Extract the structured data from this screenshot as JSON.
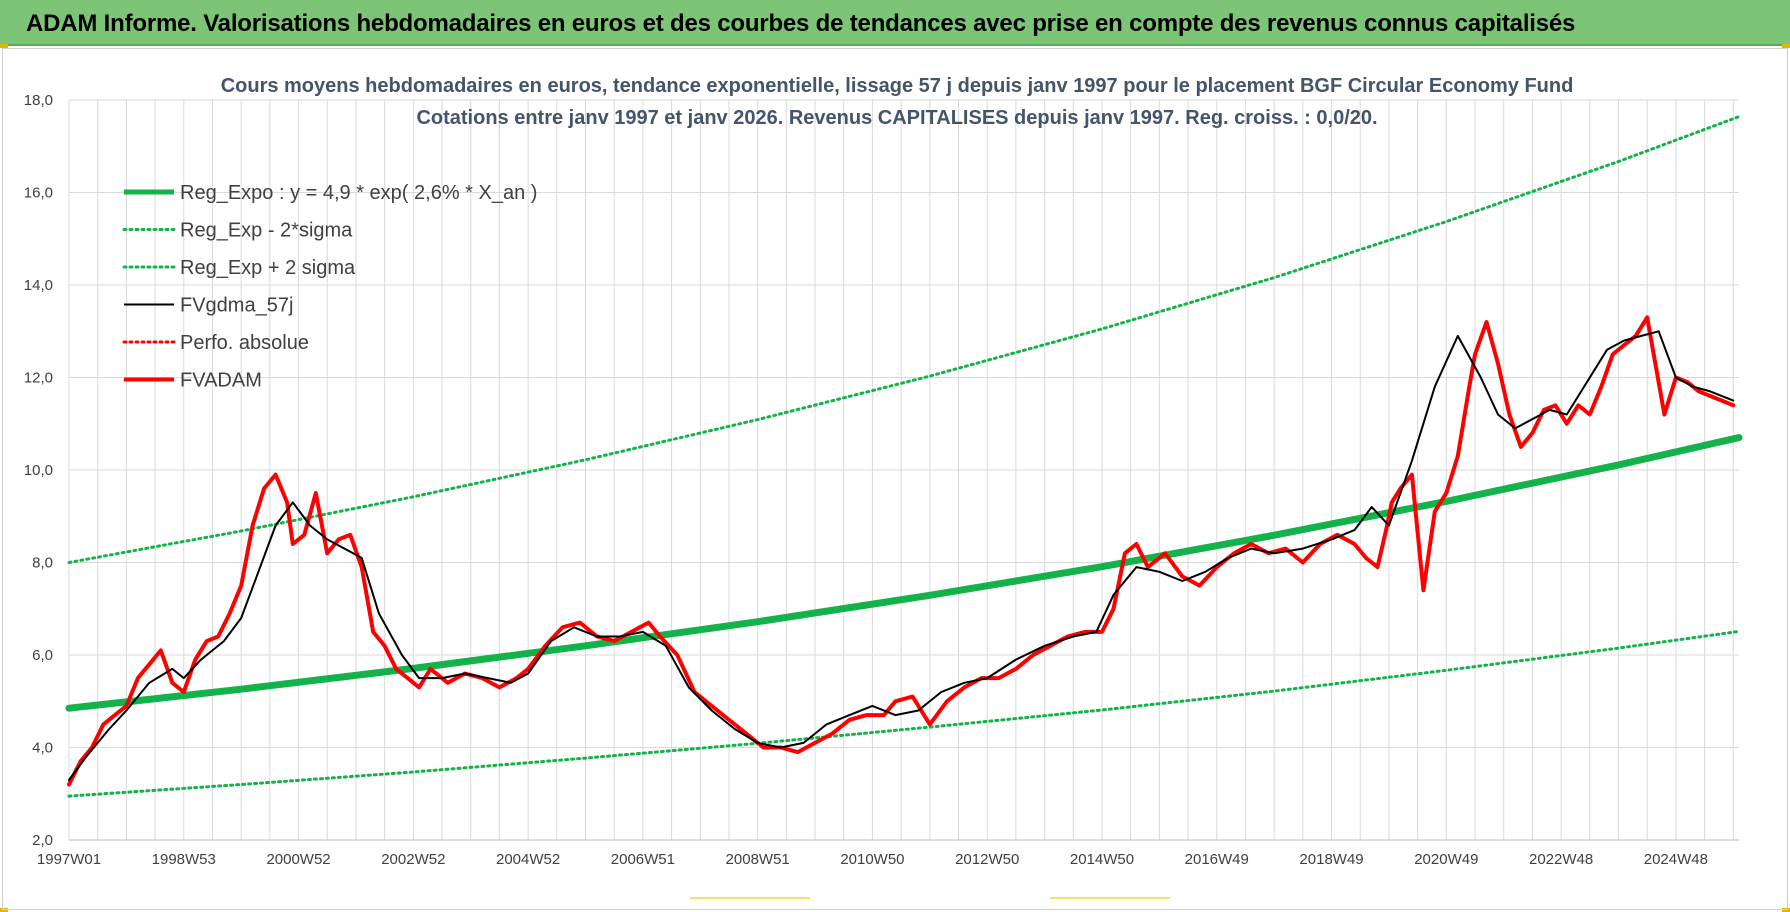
{
  "banner": {
    "title": "ADAM Informe. Valorisations hebdomadaires en euros et des courbes de tendances avec prise en compte des revenus connus capitalisés"
  },
  "colors": {
    "banner_bg": "#7cc576",
    "reg_green": "#14b24a",
    "fvadam_red": "#ff0000",
    "fvgdma_black": "#000000",
    "grid": "#d9d9d9",
    "title_text": "#44546a"
  },
  "chart_data": {
    "type": "line",
    "title": "Cours moyens hebdomadaires en euros, tendance exponentielle, lissage 57 j depuis janv 1997  pour le placement BGF Circular Economy Fund",
    "subtitle": "Cotations entre janv 1997 et janv 2026. Revenus CAPITALISES depuis janv 1997. Reg. croiss. : 0,0/20.",
    "xlabel": "",
    "ylabel": "",
    "x_range": [
      1997.0,
      2026.1
    ],
    "ylim": [
      2.0,
      18.0
    ],
    "y_ticks": [
      "2,0",
      "4,0",
      "6,0",
      "8,0",
      "10,0",
      "12,0",
      "14,0",
      "16,0",
      "18,0"
    ],
    "y_tick_values": [
      2,
      4,
      6,
      8,
      10,
      12,
      14,
      16,
      18
    ],
    "x_ticks": [
      "1997W01",
      "1998W53",
      "2000W52",
      "2002W52",
      "2004W52",
      "2006W51",
      "2008W51",
      "2010W50",
      "2012W50",
      "2014W50",
      "2016W49",
      "2018W49",
      "2020W49",
      "2022W48",
      "2024W48"
    ],
    "x_tick_values": [
      1997.0,
      1999.0,
      2001.0,
      2003.0,
      2005.0,
      2007.0,
      2009.0,
      2011.0,
      2013.0,
      2015.0,
      2017.0,
      2019.0,
      2021.0,
      2023.0,
      2025.0
    ],
    "grid": true,
    "legend_position": "top-left",
    "series": [
      {
        "name": "Reg_Expo : y = 4,9 * exp( 2,6% *  X_an )",
        "style": "solid-thick",
        "color": "#14b24a",
        "x": [
          1997.0,
          2000.0,
          2003.0,
          2006.0,
          2009.0,
          2012.0,
          2015.0,
          2018.0,
          2021.0,
          2024.0,
          2026.1
        ],
        "values": [
          4.85,
          5.26,
          5.71,
          6.2,
          6.72,
          7.29,
          7.91,
          8.59,
          9.32,
          10.11,
          10.7
        ]
      },
      {
        "name": "Reg_Exp - 2*sigma",
        "style": "dotted",
        "color": "#14b24a",
        "x": [
          1997.0,
          2000.0,
          2003.0,
          2006.0,
          2009.0,
          2012.0,
          2015.0,
          2018.0,
          2021.0,
          2024.0,
          2026.1
        ],
        "values": [
          2.95,
          3.2,
          3.47,
          3.77,
          4.09,
          4.44,
          4.81,
          5.22,
          5.67,
          6.15,
          6.51
        ]
      },
      {
        "name": "Reg_Exp + 2 sigma",
        "style": "dotted",
        "color": "#14b24a",
        "x": [
          1997.0,
          2000.0,
          2003.0,
          2006.0,
          2009.0,
          2012.0,
          2015.0,
          2018.0,
          2021.0,
          2024.0,
          2026.1
        ],
        "values": [
          8.0,
          8.68,
          9.42,
          10.22,
          11.09,
          12.03,
          13.05,
          14.16,
          15.37,
          16.67,
          17.64
        ]
      },
      {
        "name": "FVgdma_57j",
        "style": "solid",
        "color": "#000000",
        "x": [
          1997.0,
          1997.3,
          1997.7,
          1998.0,
          1998.4,
          1998.8,
          1999.0,
          1999.3,
          1999.7,
          2000.0,
          2000.3,
          2000.6,
          2000.9,
          2001.2,
          2001.5,
          2001.8,
          2002.1,
          2002.4,
          2002.8,
          2003.1,
          2003.5,
          2003.9,
          2004.3,
          2004.7,
          2005.0,
          2005.4,
          2005.8,
          2006.2,
          2006.6,
          2007.0,
          2007.4,
          2007.8,
          2008.2,
          2008.6,
          2009.0,
          2009.4,
          2009.8,
          2010.2,
          2010.6,
          2011.0,
          2011.4,
          2011.8,
          2012.2,
          2012.6,
          2013.0,
          2013.5,
          2014.0,
          2014.5,
          2014.9,
          2015.2,
          2015.6,
          2016.0,
          2016.4,
          2016.8,
          2017.2,
          2017.6,
          2018.0,
          2018.5,
          2019.0,
          2019.4,
          2019.7,
          2020.0,
          2020.4,
          2020.8,
          2021.2,
          2021.6,
          2021.9,
          2022.2,
          2022.5,
          2022.8,
          2023.1,
          2023.4,
          2023.8,
          2024.1,
          2024.4,
          2024.7,
          2025.0,
          2025.3,
          2025.6,
          2026.0
        ],
        "values": [
          3.3,
          3.8,
          4.4,
          4.8,
          5.4,
          5.7,
          5.5,
          5.9,
          6.3,
          6.8,
          7.8,
          8.8,
          9.3,
          8.8,
          8.5,
          8.3,
          8.1,
          6.9,
          6.0,
          5.5,
          5.5,
          5.6,
          5.5,
          5.4,
          5.6,
          6.3,
          6.6,
          6.4,
          6.4,
          6.5,
          6.2,
          5.3,
          4.8,
          4.4,
          4.1,
          4.0,
          4.1,
          4.5,
          4.7,
          4.9,
          4.7,
          4.8,
          5.2,
          5.4,
          5.5,
          5.9,
          6.2,
          6.4,
          6.5,
          7.3,
          7.9,
          7.8,
          7.6,
          7.8,
          8.1,
          8.3,
          8.2,
          8.3,
          8.5,
          8.7,
          9.2,
          8.8,
          10.2,
          11.8,
          12.9,
          12.0,
          11.2,
          10.9,
          11.1,
          11.3,
          11.2,
          11.8,
          12.6,
          12.8,
          12.9,
          13.0,
          12.0,
          11.8,
          11.7,
          11.5
        ]
      },
      {
        "name": "Perfo. absolue",
        "style": "dotted",
        "color": "#ff0000",
        "x": [],
        "values": []
      },
      {
        "name": "FVADAM",
        "style": "solid-thick",
        "color": "#ff0000",
        "x": [
          1997.0,
          1997.2,
          1997.4,
          1997.6,
          1997.8,
          1998.0,
          1998.2,
          1998.4,
          1998.6,
          1998.8,
          1999.0,
          1999.2,
          1999.4,
          1999.6,
          1999.8,
          2000.0,
          2000.2,
          2000.4,
          2000.6,
          2000.8,
          2000.9,
          2001.1,
          2001.3,
          2001.5,
          2001.7,
          2001.9,
          2002.1,
          2002.3,
          2002.5,
          2002.7,
          2002.9,
          2003.1,
          2003.3,
          2003.6,
          2003.9,
          2004.2,
          2004.5,
          2004.8,
          2005.0,
          2005.3,
          2005.6,
          2005.9,
          2006.2,
          2006.5,
          2006.8,
          2007.1,
          2007.3,
          2007.6,
          2007.9,
          2008.2,
          2008.5,
          2008.8,
          2009.1,
          2009.4,
          2009.7,
          2010.0,
          2010.3,
          2010.6,
          2010.9,
          2011.2,
          2011.4,
          2011.7,
          2012.0,
          2012.3,
          2012.6,
          2012.9,
          2013.2,
          2013.5,
          2013.8,
          2014.1,
          2014.4,
          2014.7,
          2015.0,
          2015.2,
          2015.4,
          2015.6,
          2015.8,
          2016.1,
          2016.4,
          2016.7,
          2017.0,
          2017.3,
          2017.6,
          2017.9,
          2018.2,
          2018.5,
          2018.8,
          2019.1,
          2019.4,
          2019.6,
          2019.8,
          2019.95,
          2020.05,
          2020.2,
          2020.4,
          2020.6,
          2020.8,
          2021.0,
          2021.2,
          2021.4,
          2021.5,
          2021.7,
          2021.9,
          2022.1,
          2022.3,
          2022.5,
          2022.7,
          2022.9,
          2023.1,
          2023.3,
          2023.5,
          2023.7,
          2023.9,
          2024.1,
          2024.3,
          2024.5,
          2024.6,
          2024.8,
          2025.0,
          2025.2,
          2025.4,
          2025.6,
          2025.8,
          2026.0
        ],
        "values": [
          3.2,
          3.7,
          4.0,
          4.5,
          4.7,
          4.9,
          5.5,
          5.8,
          6.1,
          5.4,
          5.2,
          5.9,
          6.3,
          6.4,
          6.9,
          7.5,
          8.8,
          9.6,
          9.9,
          9.3,
          8.4,
          8.6,
          9.5,
          8.2,
          8.5,
          8.6,
          7.9,
          6.5,
          6.2,
          5.7,
          5.5,
          5.3,
          5.7,
          5.4,
          5.6,
          5.5,
          5.3,
          5.5,
          5.7,
          6.2,
          6.6,
          6.7,
          6.4,
          6.3,
          6.5,
          6.7,
          6.4,
          6.0,
          5.2,
          4.9,
          4.6,
          4.3,
          4.0,
          4.0,
          3.9,
          4.1,
          4.3,
          4.6,
          4.7,
          4.7,
          5.0,
          5.1,
          4.5,
          5.0,
          5.3,
          5.5,
          5.5,
          5.7,
          6.0,
          6.2,
          6.4,
          6.5,
          6.5,
          7.0,
          8.2,
          8.4,
          7.9,
          8.2,
          7.7,
          7.5,
          7.9,
          8.2,
          8.4,
          8.2,
          8.3,
          8.0,
          8.4,
          8.6,
          8.4,
          8.1,
          7.9,
          8.7,
          9.3,
          9.6,
          9.9,
          7.4,
          9.1,
          9.5,
          10.3,
          11.8,
          12.5,
          13.2,
          12.3,
          11.2,
          10.5,
          10.8,
          11.3,
          11.4,
          11.0,
          11.4,
          11.2,
          11.8,
          12.5,
          12.7,
          12.9,
          13.3,
          12.6,
          11.2,
          12.0,
          11.9,
          11.7,
          11.6,
          11.5,
          11.4
        ]
      }
    ]
  }
}
